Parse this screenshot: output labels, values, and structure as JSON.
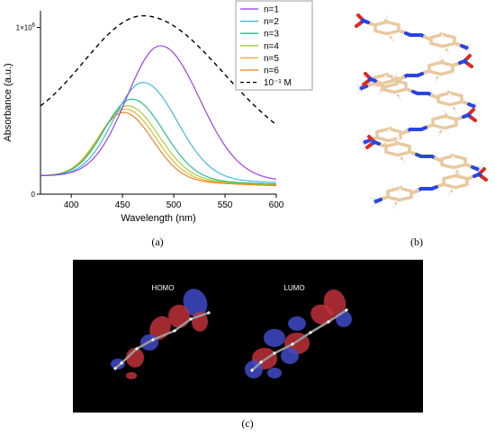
{
  "panels": {
    "a": "(a)",
    "b": "(b)",
    "c": "(c)"
  },
  "chart_data": {
    "type": "line",
    "xlabel": "Wavelength (nm)",
    "ylabel": "Absorbance (a.u.)",
    "xlim": [
      370,
      600
    ],
    "ylim": [
      0,
      1.1
    ],
    "x_ticks": [
      "400",
      "450",
      "500",
      "550",
      "600"
    ],
    "y_ticks": [
      {
        "label": "0",
        "value": 0
      },
      {
        "label": "1×10",
        "exp": "6",
        "value": 1.0
      }
    ],
    "legend_position": "top-right",
    "series": [
      {
        "name": "n=1",
        "color": "#9b30e8",
        "dash": "",
        "peak_x": 487,
        "peak_y": 0.89,
        "y370": 0.11,
        "y600": 0.08,
        "sigma_left": 33,
        "sigma_right": 38
      },
      {
        "name": "n=2",
        "color": "#33b5e5",
        "dash": "",
        "peak_x": 470,
        "peak_y": 0.67,
        "y370": 0.11,
        "y600": 0.07,
        "sigma_left": 29,
        "sigma_right": 33
      },
      {
        "name": "n=3",
        "color": "#1db88a",
        "dash": "",
        "peak_x": 459,
        "peak_y": 0.57,
        "y370": 0.11,
        "y600": 0.06,
        "sigma_left": 27,
        "sigma_right": 31
      },
      {
        "name": "n=4",
        "color": "#9fcc2e",
        "dash": "",
        "peak_x": 455,
        "peak_y": 0.53,
        "y370": 0.11,
        "y600": 0.06,
        "sigma_left": 26,
        "sigma_right": 30
      },
      {
        "name": "n=5",
        "color": "#e6b020",
        "dash": "",
        "peak_x": 453,
        "peak_y": 0.51,
        "y370": 0.11,
        "y600": 0.055,
        "sigma_left": 26,
        "sigma_right": 29
      },
      {
        "name": "n=6",
        "color": "#f07a1a",
        "dash": "",
        "peak_x": 451,
        "peak_y": 0.49,
        "y370": 0.11,
        "y600": 0.05,
        "sigma_left": 25,
        "sigma_right": 28
      },
      {
        "name": "10⁻¹ M",
        "color": "#000000",
        "dash": "5,4",
        "peak_x": 470,
        "peak_y": 1.07,
        "y370": 0.35,
        "y600": 0.23,
        "sigma_left": 60,
        "sigma_right": 75
      }
    ]
  },
  "orbitals": {
    "homo_label": "HOMO",
    "lumo_label": "LUMO"
  },
  "colors": {
    "carbon": "#e8c9a0",
    "hydrogen": "#f2f2f2",
    "nitrogen": "#2a45e0",
    "oxygen": "#e0281e",
    "orbital_positive": "#3f49c8",
    "orbital_negative": "#c0303a",
    "render_background": "#000000"
  }
}
